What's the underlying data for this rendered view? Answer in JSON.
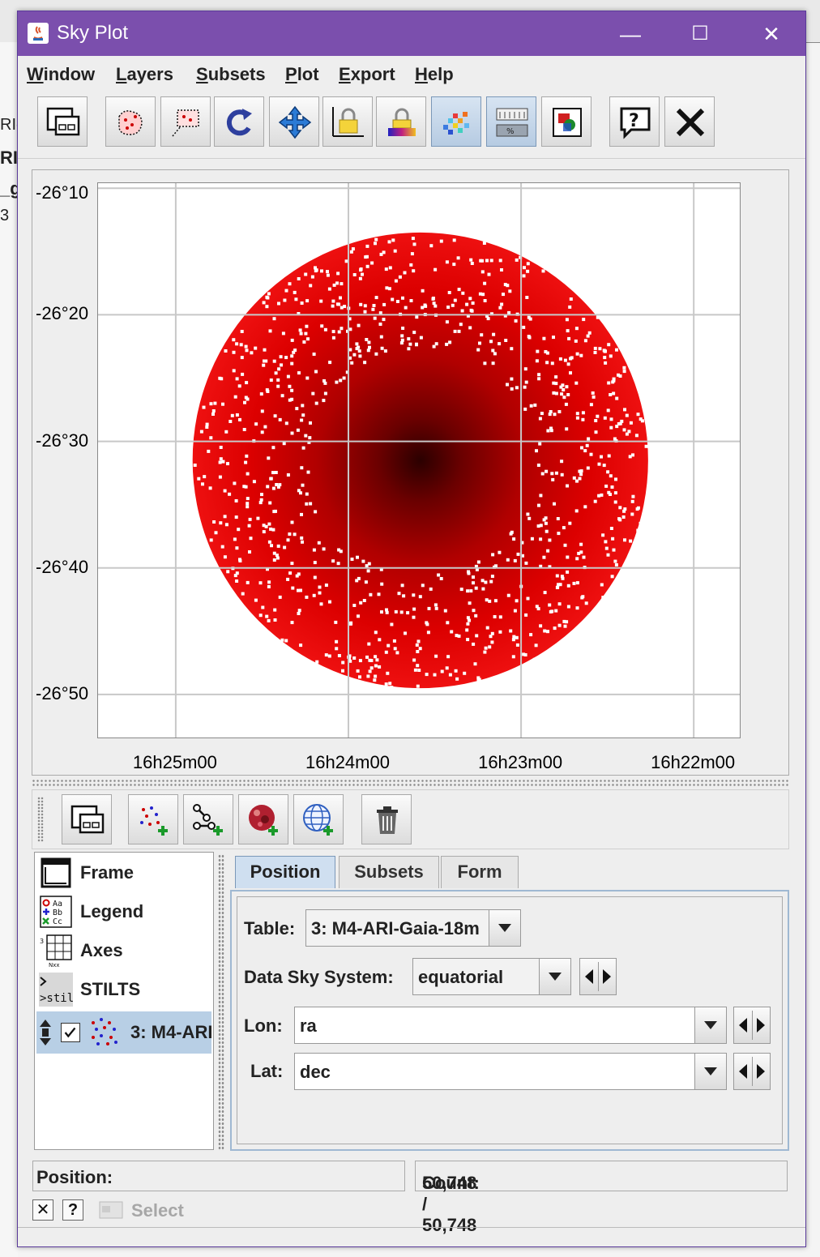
{
  "window": {
    "title": "Sky Plot",
    "controls": {
      "minimize": "—",
      "maximize": "☐",
      "close": "✕"
    }
  },
  "menubar": {
    "items": [
      {
        "label": "Window",
        "mnemonic": "W",
        "rest": "indow"
      },
      {
        "label": "Layers",
        "mnemonic": "L",
        "rest": "ayers"
      },
      {
        "label": "Subsets",
        "mnemonic": "S",
        "rest": "ubsets"
      },
      {
        "label": "Plot",
        "mnemonic": "P",
        "rest": "lot"
      },
      {
        "label": "Export",
        "mnemonic": "E",
        "rest": "xport"
      },
      {
        "label": "Help",
        "mnemonic": "H",
        "rest": "elp"
      }
    ]
  },
  "toolbar": {
    "icons": [
      "window-icon",
      "blob-subset-icon",
      "rect-subset-icon",
      "replot-icon",
      "navigate-icon",
      "lock-axes-icon",
      "aux-lock-icon",
      "density-icon",
      "percentile-icon",
      "export-image-icon",
      "help-icon",
      "close-icon"
    ],
    "active": [
      "density-icon",
      "percentile-icon"
    ]
  },
  "chart_data": {
    "type": "scatter",
    "title": "",
    "xlabel": "",
    "ylabel": "",
    "x_ticks": [
      "16h25m00",
      "16h24m00",
      "16h23m00",
      "16h22m00"
    ],
    "y_ticks": [
      "-26°10",
      "-26°20",
      "-26°30",
      "-26°40",
      "-26°50"
    ],
    "x_range": [
      "16h25m27",
      "16h21m44"
    ],
    "y_range": [
      -26.16,
      -26.89
    ],
    "points_center": {
      "ra": "16h23m35",
      "dec": -26.525
    },
    "points_radius_deg": 0.3,
    "density_shading": true,
    "marker_color": "#e00000",
    "grid": true
  },
  "layer_toolbar": {
    "icons": [
      "window-icon",
      "add-position-plot-icon",
      "add-pair-plot-icon",
      "add-hips-icon",
      "add-sky-grid-icon",
      "delete-layer-icon"
    ]
  },
  "layers": {
    "items": [
      {
        "label": "Frame",
        "icon": "frame-icon"
      },
      {
        "label": "Legend",
        "icon": "legend-icon"
      },
      {
        "label": "Axes",
        "icon": "axes-icon"
      },
      {
        "label": "STILTS",
        "icon": "stilts-icon"
      }
    ],
    "data_layer": {
      "label": "3: M4-ARI",
      "checked": true
    }
  },
  "tabs": [
    {
      "label": "Position",
      "active": true
    },
    {
      "label": "Subsets",
      "active": false
    },
    {
      "label": "Form",
      "active": false
    }
  ],
  "position_form": {
    "table_label": "Table:",
    "table_value": "3: M4-ARI-Gaia-18m",
    "sky_system_label": "Data Sky System:",
    "sky_system_value": "equatorial",
    "lon_label": "Lon:",
    "lon_value": "ra",
    "lat_label": "Lat:",
    "lat_value": "dec"
  },
  "status": {
    "position_label": "Position:",
    "count_label": "Count:",
    "count_value": "50,748 / 50,748",
    "select_label": "Select",
    "close_btn": "✕",
    "help_btn": "?"
  },
  "background": {
    "fragments": [
      "RI-",
      "RI-",
      "_g",
      "3"
    ]
  }
}
